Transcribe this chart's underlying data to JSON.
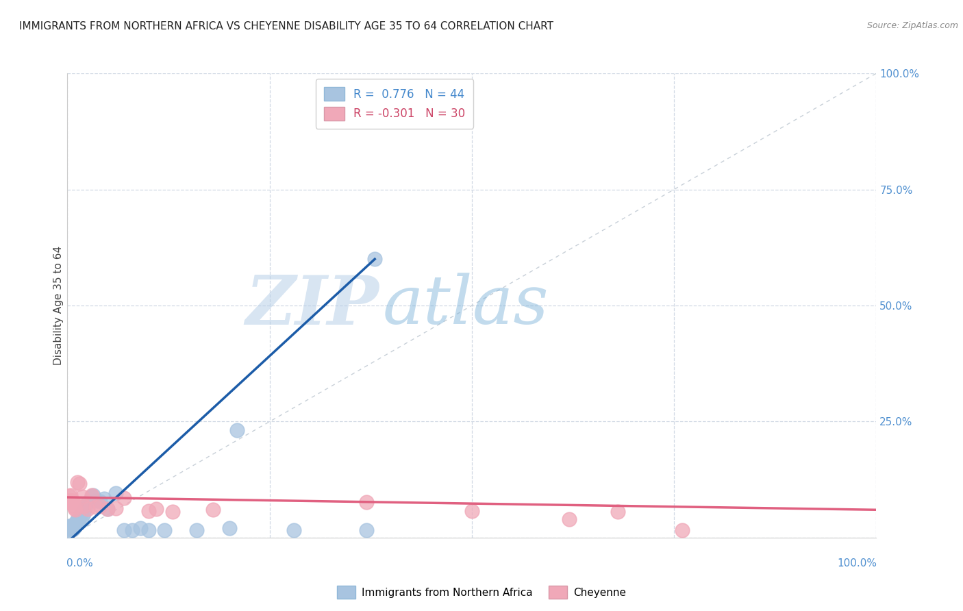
{
  "title": "IMMIGRANTS FROM NORTHERN AFRICA VS CHEYENNE DISABILITY AGE 35 TO 64 CORRELATION CHART",
  "source": "Source: ZipAtlas.com",
  "ylabel": "Disability Age 35 to 64",
  "xlim": [
    0,
    1.0
  ],
  "ylim": [
    0,
    1.0
  ],
  "blue_R": 0.776,
  "blue_N": 44,
  "pink_R": -0.301,
  "pink_N": 30,
  "blue_color": "#a8c4e0",
  "pink_color": "#f0a8b8",
  "blue_line_color": "#1c5ca8",
  "pink_line_color": "#e06080",
  "diagonal_color": "#c8d0d8",
  "watermark_zip": "ZIP",
  "watermark_atlas": "atlas",
  "grid_color": "#d0d8e4",
  "right_label_color": "#5090d0",
  "blue_points_x": [
    0.001,
    0.001,
    0.002,
    0.002,
    0.003,
    0.003,
    0.004,
    0.004,
    0.005,
    0.005,
    0.006,
    0.006,
    0.007,
    0.008,
    0.008,
    0.009,
    0.01,
    0.01,
    0.012,
    0.013,
    0.015,
    0.016,
    0.018,
    0.02,
    0.022,
    0.025,
    0.03,
    0.032,
    0.035,
    0.04,
    0.045,
    0.05,
    0.06,
    0.07,
    0.08,
    0.09,
    0.1,
    0.12,
    0.16,
    0.2,
    0.21,
    0.28,
    0.37,
    0.38
  ],
  "blue_points_y": [
    0.02,
    0.015,
    0.02,
    0.025,
    0.02,
    0.025,
    0.018,
    0.022,
    0.02,
    0.022,
    0.018,
    0.02,
    0.022,
    0.02,
    0.025,
    0.026,
    0.028,
    0.032,
    0.04,
    0.036,
    0.044,
    0.048,
    0.046,
    0.052,
    0.064,
    0.076,
    0.088,
    0.092,
    0.08,
    0.078,
    0.084,
    0.062,
    0.096,
    0.016,
    0.016,
    0.02,
    0.016,
    0.016,
    0.016,
    0.02,
    0.232,
    0.016,
    0.016,
    0.6
  ],
  "pink_points_x": [
    0.001,
    0.002,
    0.003,
    0.004,
    0.005,
    0.006,
    0.007,
    0.008,
    0.009,
    0.01,
    0.012,
    0.015,
    0.018,
    0.02,
    0.025,
    0.03,
    0.035,
    0.04,
    0.05,
    0.06,
    0.07,
    0.1,
    0.11,
    0.13,
    0.18,
    0.37,
    0.5,
    0.62,
    0.68,
    0.76
  ],
  "pink_points_y": [
    0.08,
    0.09,
    0.076,
    0.092,
    0.08,
    0.08,
    0.076,
    0.068,
    0.064,
    0.06,
    0.12,
    0.116,
    0.088,
    0.068,
    0.062,
    0.092,
    0.066,
    0.068,
    0.062,
    0.064,
    0.086,
    0.058,
    0.062,
    0.056,
    0.06,
    0.076,
    0.058,
    0.04,
    0.056,
    0.016
  ],
  "blue_line_x": [
    0.0,
    0.38
  ],
  "blue_line_y": [
    -0.01,
    0.6
  ],
  "pink_line_x": [
    0.0,
    1.0
  ],
  "pink_line_y": [
    0.087,
    0.06
  ]
}
